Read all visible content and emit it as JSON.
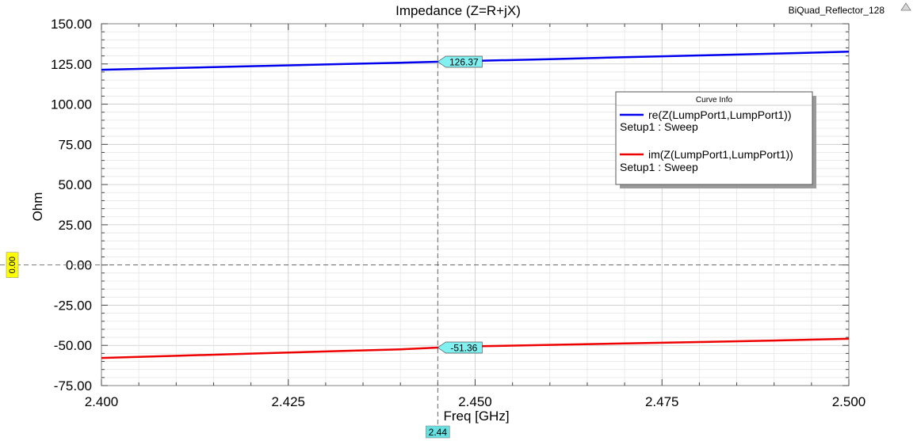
{
  "window": {
    "project_name": "BiQuad_Reflector_128",
    "corner_icon": "triangle-up-icon"
  },
  "chart_data": {
    "type": "line",
    "title": "Impedance (Z=R+jX)",
    "xlabel": "Freq [GHz]",
    "ylabel": "Ohm",
    "xlim": [
      2.4,
      2.5
    ],
    "ylim": [
      -75,
      150
    ],
    "x_ticks": [
      "2.400",
      "2.425",
      "2.450",
      "2.475",
      "2.500"
    ],
    "y_ticks": [
      "150.00",
      "125.00",
      "100.00",
      "75.00",
      "50.00",
      "25.00",
      "0.00",
      "-25.00",
      "-50.00",
      "-75.00"
    ],
    "grid": true,
    "legend": {
      "title": "Curve Info",
      "placement": "top-right"
    },
    "series": [
      {
        "name": "re(Z(LumpPort1,LumpPort1))",
        "setup": "Setup1 : Sweep",
        "color": "#0000ee",
        "x": [
          2.4,
          2.41,
          2.42,
          2.43,
          2.44,
          2.445,
          2.45,
          2.46,
          2.47,
          2.48,
          2.49,
          2.5
        ],
        "values": [
          121.4,
          122.5,
          123.6,
          124.7,
          125.8,
          126.37,
          126.9,
          128.0,
          129.2,
          130.3,
          131.4,
          132.6
        ]
      },
      {
        "name": "im(Z(LumpPort1,LumpPort1))",
        "setup": "Setup1 : Sweep",
        "color": "#ee0000",
        "x": [
          2.4,
          2.41,
          2.42,
          2.43,
          2.44,
          2.445,
          2.45,
          2.46,
          2.47,
          2.48,
          2.49,
          2.5
        ],
        "values": [
          -57.8,
          -56.5,
          -55.1,
          -53.8,
          -52.5,
          -51.36,
          -50.6,
          -49.7,
          -48.8,
          -47.9,
          -47.0,
          -45.9
        ]
      }
    ],
    "markers": {
      "cursor_x": 2.445,
      "cursor_x_label": "2.44",
      "zero_line_label": "0.00",
      "data_labels": [
        {
          "series": 0,
          "text": "126.37",
          "x": 2.445,
          "y": 126.37
        },
        {
          "series": 1,
          "text": "-51.36",
          "x": 2.445,
          "y": -51.36
        }
      ]
    }
  }
}
